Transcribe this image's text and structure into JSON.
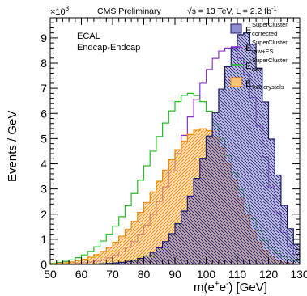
{
  "chart_data": {
    "type": "line",
    "header_left": "CMS Preliminary",
    "header_right": "√s = 13 TeV, L = 2.2 fb",
    "header_right_sup": "-1",
    "annotation_line1": "ECAL",
    "annotation_line2": "Endcap-Endcap",
    "ylabel": "Events / GeV",
    "y_multiplier_base": "×10",
    "y_multiplier_exp": "3",
    "xlabel_parts": [
      "m(e",
      "+",
      "e",
      "-",
      ") [GeV]"
    ],
    "xlim": [
      50,
      130
    ],
    "ylim": [
      0,
      9.8
    ],
    "x_ticks": [
      50,
      60,
      70,
      80,
      90,
      100,
      110,
      120,
      130
    ],
    "y_ticks": [
      0,
      1,
      2,
      3,
      4,
      5,
      6,
      7,
      8,
      9
    ],
    "legend_position": "top-right",
    "series": [
      {
        "name": "E",
        "legend_sup": "SuperCluster",
        "legend_sub": "raw",
        "color": "#22bb22",
        "fill": "none",
        "peak_x": 78.5,
        "peak_y": 6.8,
        "sigma_left": 7.5,
        "sigma_right": 5.0,
        "values": [
          0.05,
          0.08,
          0.12,
          0.18,
          0.27,
          0.38,
          0.52,
          0.7,
          0.93,
          1.2,
          1.52,
          1.9,
          2.33,
          2.82,
          3.35,
          3.92,
          4.5,
          5.08,
          5.62,
          6.1,
          6.47,
          6.72,
          6.8,
          6.71,
          6.47,
          6.09,
          5.58,
          4.98,
          4.32,
          3.64,
          2.98,
          2.36,
          1.81,
          1.34,
          0.96,
          0.66,
          0.44,
          0.3,
          0.2,
          0.14
        ]
      },
      {
        "name": "E",
        "legend_sup": "SuperCluster",
        "legend_sub": "raw+ES",
        "color": "#8833cc",
        "fill": "none",
        "peak_x": 87.5,
        "peak_y": 8.6,
        "sigma_left": 5.5,
        "sigma_right": 3.5,
        "values": [
          0.01,
          0.01,
          0.02,
          0.03,
          0.04,
          0.06,
          0.09,
          0.13,
          0.18,
          0.26,
          0.36,
          0.5,
          0.68,
          0.91,
          1.2,
          1.56,
          1.99,
          2.5,
          3.08,
          3.72,
          4.41,
          5.13,
          5.86,
          6.56,
          7.2,
          7.75,
          8.19,
          8.48,
          8.6,
          8.52,
          8.19,
          7.55,
          6.63,
          5.5,
          4.27,
          3.08,
          2.05,
          1.27,
          0.74,
          0.41
        ]
      },
      {
        "name": "E",
        "legend_sup": "SuperCluster",
        "legend_sub": "corrected",
        "color": "#1a1a66",
        "fill": "#8f8fd6",
        "peak_x": 90.0,
        "peak_y": 9.2,
        "sigma_left": 3.5,
        "sigma_right": 2.8,
        "values": [
          0.0,
          0.0,
          0.0,
          0.0,
          0.01,
          0.01,
          0.01,
          0.02,
          0.03,
          0.04,
          0.06,
          0.08,
          0.12,
          0.17,
          0.24,
          0.34,
          0.48,
          0.66,
          0.91,
          1.22,
          1.62,
          2.12,
          2.72,
          3.42,
          4.22,
          5.1,
          6.03,
          6.97,
          7.86,
          8.62,
          9.13,
          9.2,
          8.75,
          7.8,
          6.46,
          4.98,
          3.55,
          2.34,
          1.42,
          0.8
        ]
      },
      {
        "name": "E",
        "legend_sup": "",
        "legend_sub": "5x5 crystals",
        "color": "#ee8800",
        "fill": "#f7c27a",
        "peak_x": 80.5,
        "peak_y": 5.4,
        "sigma_left": 7.0,
        "sigma_right": 4.0,
        "values": [
          0.03,
          0.05,
          0.07,
          0.1,
          0.15,
          0.21,
          0.29,
          0.39,
          0.52,
          0.68,
          0.88,
          1.12,
          1.39,
          1.71,
          2.07,
          2.46,
          2.88,
          3.31,
          3.75,
          4.17,
          4.56,
          4.9,
          5.16,
          5.33,
          5.39,
          5.32,
          5.06,
          4.62,
          4.03,
          3.35,
          2.63,
          1.95,
          1.36,
          0.89,
          0.55,
          0.32,
          0.17,
          0.09,
          0.05,
          0.02
        ]
      }
    ]
  }
}
